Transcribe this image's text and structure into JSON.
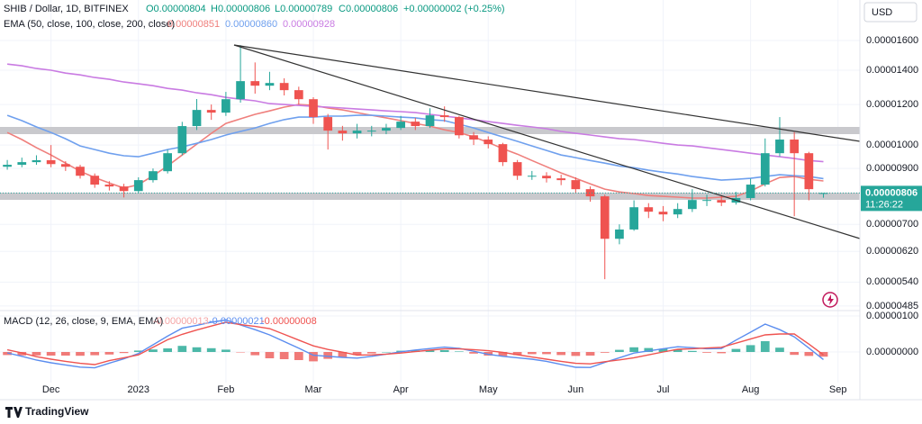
{
  "chart_data": {
    "type": "candlestick",
    "title": "SHIB / Dollar, 1D, BITFINEX",
    "header": [
      "O0.00000804",
      "H0.00000806",
      "L0.00000789",
      "C0.00000806",
      "+0.00000002 (+0.25%)"
    ],
    "currency": "USD",
    "price_label": "0.00000806",
    "countdown": "11:26:22",
    "log_scale": true,
    "grid": true,
    "up_color": "#26a69a",
    "down_color": "#ef5350",
    "ylim": [
      4.75e-06,
      1.92e-05
    ],
    "yticks": [
      {
        "value": 4.85e-06,
        "label": "0.00000485"
      },
      {
        "value": 5.4e-06,
        "label": "0.00000540"
      },
      {
        "value": 6.2e-06,
        "label": "0.00000620"
      },
      {
        "value": 7e-06,
        "label": "0.00000700"
      },
      {
        "value": 9e-06,
        "label": "0.00000900"
      },
      {
        "value": 1e-05,
        "label": "0.00001000"
      },
      {
        "value": 1.2e-05,
        "label": "0.00001200"
      },
      {
        "value": 1.4e-05,
        "label": "0.00001400"
      },
      {
        "value": 1.6e-05,
        "label": "0.00001600"
      }
    ],
    "categories": [
      null,
      null,
      null,
      "Dec",
      null,
      null,
      null,
      null,
      null,
      "2023",
      null,
      null,
      null,
      null,
      null,
      "Feb",
      null,
      null,
      null,
      null,
      null,
      "Mar",
      null,
      null,
      null,
      null,
      null,
      "Apr",
      null,
      null,
      null,
      null,
      null,
      "May",
      null,
      null,
      null,
      null,
      null,
      "Jun",
      null,
      null,
      null,
      null,
      null,
      "Jul",
      null,
      null,
      null,
      null,
      null,
      "Aug",
      null,
      null,
      null,
      null,
      null,
      "Sep",
      null
    ],
    "open": [
      9.07e-06,
      9.15e-06,
      9.26e-06,
      9.34e-06,
      9.18e-06,
      9.07e-06,
      8.71e-06,
      8.37e-06,
      8.3e-06,
      8.13e-06,
      8.54e-06,
      8.89e-06,
      9.64e-06,
      1.089e-05,
      1.171e-05,
      1.157e-05,
      1.229e-05,
      1.333e-05,
      1.306e-05,
      1.322e-05,
      1.28e-05,
      1.229e-05,
      1.134e-05,
      1.067e-05,
      1.054e-05,
      1.067e-05,
      1.067e-05,
      1.08e-05,
      1.111e-05,
      1.089e-05,
      1.143e-05,
      1.134e-05,
      1.045e-05,
      1.025e-05,
      1.004e-05,
      9.26e-06,
      8.71e-06,
      8.71e-06,
      8.61e-06,
      8.54e-06,
      8.2e-06,
      7.94e-06,
      6.56e-06,
      6.84e-06,
      7.56e-06,
      7.41e-06,
      7.32e-06,
      7.5e-06,
      7.81e-06,
      7.81e-06,
      7.72e-06,
      7.88e-06,
      8.37e-06,
      9.64e-06,
      1.025e-05,
      9.64e-06,
      8.04e-06,
      null,
      null
    ],
    "high": [
      9.35e-06,
      9.45e-06,
      9.55e-06,
      1e-05,
      9.3e-06,
      9.15e-06,
      8.8e-06,
      8.5e-06,
      8.4e-06,
      8.65e-06,
      9e-06,
      9.8e-06,
      1.11e-05,
      1.23e-05,
      1.2e-05,
      1.27e-05,
      1.567e-05,
      1.45e-05,
      1.39e-05,
      1.35e-05,
      1.3e-05,
      1.24e-05,
      1.15e-05,
      1.09e-05,
      1.1e-05,
      1.09e-05,
      1.1e-05,
      1.14e-05,
      1.13e-05,
      1.18e-05,
      1.19e-05,
      1.14e-05,
      1.06e-05,
      1.04e-05,
      1.01e-05,
      9.35e-06,
      8.9e-06,
      8.85e-06,
      8.75e-06,
      8.65e-06,
      8.3e-06,
      8e-06,
      7e-06,
      7.8e-06,
      7.7e-06,
      7.6e-06,
      7.7e-06,
      8.2e-06,
      8e-06,
      7.95e-06,
      8.1e-06,
      8.6e-06,
      1.03e-05,
      1.134e-05,
      1.06e-05,
      9.7e-06,
      8.06e-06,
      null,
      null
    ],
    "low": [
      8.95e-06,
      9.05e-06,
      9.15e-06,
      9.05e-06,
      8.9e-06,
      8.6e-06,
      8.25e-06,
      8.15e-06,
      7.9e-06,
      8.05e-06,
      8.45e-06,
      8.8e-06,
      9.55e-06,
      1.07e-05,
      1.12e-05,
      1.14e-05,
      1.21e-05,
      1.26e-05,
      1.28e-05,
      1.25e-05,
      1.2e-05,
      1.1e-05,
      9.8e-06,
      1.02e-05,
      1.03e-05,
      1.04e-05,
      1.05e-05,
      1.07e-05,
      1.07e-05,
      1.08e-05,
      1.11e-05,
      1.03e-05,
      1e-05,
      9.85e-06,
      9.1e-06,
      8.55e-06,
      8.55e-06,
      8.45e-06,
      8.35e-06,
      8.05e-06,
      7.75e-06,
      5.47e-06,
      6.4e-06,
      6.8e-06,
      7.2e-06,
      7.1e-06,
      7.2e-06,
      7.4e-06,
      7.6e-06,
      7.6e-06,
      7.65e-06,
      7.8e-06,
      8.3e-06,
      9.5e-06,
      7.26e-06,
      7.8e-06,
      7.89e-06,
      null,
      null
    ],
    "close": [
      9.15e-06,
      9.26e-06,
      9.34e-06,
      9.18e-06,
      9.07e-06,
      8.71e-06,
      8.37e-06,
      8.3e-06,
      8.13e-06,
      8.54e-06,
      8.89e-06,
      9.64e-06,
      1.089e-05,
      1.171e-05,
      1.157e-05,
      1.229e-05,
      1.333e-05,
      1.306e-05,
      1.322e-05,
      1.28e-05,
      1.229e-05,
      1.134e-05,
      1.067e-05,
      1.054e-05,
      1.067e-05,
      1.067e-05,
      1.08e-05,
      1.111e-05,
      1.089e-05,
      1.143e-05,
      1.134e-05,
      1.045e-05,
      1.025e-05,
      1.004e-05,
      9.26e-06,
      8.71e-06,
      8.71e-06,
      8.61e-06,
      8.54e-06,
      8.2e-06,
      7.94e-06,
      6.56e-06,
      6.84e-06,
      7.56e-06,
      7.41e-06,
      7.32e-06,
      7.5e-06,
      7.81e-06,
      7.81e-06,
      7.72e-06,
      7.88e-06,
      8.37e-06,
      9.64e-06,
      1.025e-05,
      9.64e-06,
      8.2e-06,
      8.06e-06,
      null,
      null
    ],
    "indicator_label": "EMA (50, close, 100, close, 200, close)",
    "series": [
      {
        "color": "#ef7f7c",
        "value_label": "0.00000851",
        "values": [
          1.058e-05,
          1.025e-05,
          9.88e-06,
          9.56e-06,
          9.22e-06,
          8.89e-06,
          8.64e-06,
          8.43e-06,
          8.24e-06,
          8.37e-06,
          8.71e-06,
          9.1e-06,
          9.56e-06,
          1.004e-05,
          1.054e-05,
          1.102e-05,
          1.125e-05,
          1.148e-05,
          1.166e-05,
          1.186e-05,
          1.2e-05,
          1.195e-05,
          1.181e-05,
          1.171e-05,
          1.157e-05,
          1.143e-05,
          1.13e-05,
          1.116e-05,
          1.102e-05,
          1.089e-05,
          1.071e-05,
          1.058e-05,
          1.037e-05,
          1.012e-05,
          9.84e-06,
          9.6e-06,
          9.33e-06,
          9.07e-06,
          8.82e-06,
          8.61e-06,
          8.4e-06,
          8.2e-06,
          8.1e-06,
          8.04e-06,
          7.97e-06,
          7.94e-06,
          7.91e-06,
          7.88e-06,
          7.88e-06,
          7.91e-06,
          7.94e-06,
          8.13e-06,
          8.4e-06,
          8.64e-06,
          8.68e-06,
          8.57e-06,
          8.51e-06,
          null,
          null
        ]
      },
      {
        "color": "#6fa0ee",
        "value_label": "0.00000860",
        "values": [
          1.143e-05,
          1.116e-05,
          1.085e-05,
          1.058e-05,
          1.029e-05,
          9.96e-06,
          9.8e-06,
          9.64e-06,
          9.53e-06,
          9.49e-06,
          9.64e-06,
          9.8e-06,
          9.92e-06,
          1.008e-05,
          1.025e-05,
          1.046e-05,
          1.063e-05,
          1.08e-05,
          1.102e-05,
          1.121e-05,
          1.134e-05,
          1.134e-05,
          1.139e-05,
          1.139e-05,
          1.143e-05,
          1.143e-05,
          1.139e-05,
          1.134e-05,
          1.13e-05,
          1.121e-05,
          1.116e-05,
          1.098e-05,
          1.08e-05,
          1.058e-05,
          1.037e-05,
          1.017e-05,
          9.96e-06,
          9.76e-06,
          9.56e-06,
          9.45e-06,
          9.33e-06,
          9.22e-06,
          9.1e-06,
          9.03e-06,
          8.93e-06,
          8.85e-06,
          8.78e-06,
          8.68e-06,
          8.61e-06,
          8.54e-06,
          8.57e-06,
          8.61e-06,
          8.68e-06,
          8.75e-06,
          8.71e-06,
          8.68e-06,
          8.6e-06,
          null,
          null
        ]
      },
      {
        "color": "#c97be2",
        "value_label": "0.00000928",
        "values": [
          1.439e-05,
          1.428e-05,
          1.411e-05,
          1.4e-05,
          1.382e-05,
          1.371e-05,
          1.355e-05,
          1.344e-05,
          1.328e-05,
          1.317e-05,
          1.306e-05,
          1.29e-05,
          1.28e-05,
          1.265e-05,
          1.254e-05,
          1.239e-05,
          1.229e-05,
          1.22e-05,
          1.205e-05,
          1.2e-05,
          1.195e-05,
          1.19e-05,
          1.186e-05,
          1.181e-05,
          1.176e-05,
          1.171e-05,
          1.166e-05,
          1.162e-05,
          1.157e-05,
          1.148e-05,
          1.139e-05,
          1.13e-05,
          1.121e-05,
          1.111e-05,
          1.102e-05,
          1.093e-05,
          1.085e-05,
          1.076e-05,
          1.063e-05,
          1.054e-05,
          1.046e-05,
          1.037e-05,
          1.029e-05,
          1.025e-05,
          1.017e-05,
          1.008e-05,
          1e-05,
          9.96e-06,
          9.88e-06,
          9.8e-06,
          9.72e-06,
          9.64e-06,
          9.56e-06,
          9.49e-06,
          9.41e-06,
          9.33e-06,
          9.28e-06,
          null,
          null
        ]
      }
    ],
    "macd": {
      "label": "MACD (12, 26, close, 9, EMA, EMA)",
      "ylim": [
        -8.5e-07,
        1.15e-06
      ],
      "yticks": [
        {
          "value": 1e-06,
          "label": "0.00000100"
        },
        {
          "value": 0,
          "label": "0.00000000"
        }
      ],
      "histogram": {
        "value_label": "-0.00000013",
        "up_color": "#4cb8a8",
        "down_color": "#f07a78",
        "values": [
          -8.5e-08,
          -9.5e-08,
          -9.5e-08,
          -1e-07,
          -1e-07,
          -1.05e-07,
          -9e-08,
          -7e-08,
          -3e-08,
          4e-08,
          7e-08,
          1e-07,
          1.7e-07,
          1.3e-07,
          1.05e-07,
          6.5e-08,
          -1e-08,
          -9e-08,
          -1.75e-07,
          -2e-07,
          -2.25e-07,
          -2.6e-07,
          -1.9e-07,
          -1.45e-07,
          -8.5e-08,
          -4e-08,
          0,
          3.5e-08,
          4.5e-08,
          4.5e-08,
          5e-08,
          1.5e-08,
          -4.5e-08,
          -1e-07,
          -1.1e-07,
          -8.5e-08,
          -6e-08,
          -6e-08,
          -8.5e-08,
          -1.1e-07,
          -1e-07,
          -2e-08,
          6e-08,
          1.3e-07,
          1.1e-07,
          9e-08,
          7e-08,
          3e-08,
          -2e-08,
          -3.5e-08,
          8.5e-08,
          1.9e-07,
          3e-07,
          1.2e-07,
          -8e-08,
          -1.1e-07,
          -1.3e-07,
          null,
          null
        ]
      },
      "series": [
        {
          "color": "#5b8def",
          "value_label": "-0.00000021",
          "values": [
            -2.5e-08,
            -1.2e-07,
            -2.25e-07,
            -3e-07,
            -3.6e-07,
            -4.2e-07,
            -4.4e-07,
            -3.1e-07,
            -1.9e-07,
            -4e-08,
            2e-07,
            4.4e-07,
            6.6e-07,
            7.4e-07,
            8.25e-07,
            8.9e-07,
            7.5e-07,
            6.2e-07,
            4.75e-07,
            2.9e-07,
            1.05e-07,
            -9e-08,
            -1.2e-07,
            -1.5e-07,
            -1.7e-07,
            -1.2e-07,
            -6e-08,
            5e-09,
            5.5e-08,
            9.5e-08,
            1.35e-07,
            1e-07,
            2e-08,
            -6.5e-08,
            -1.2e-07,
            -1.6e-07,
            -2e-07,
            -2.6e-07,
            -3.45e-07,
            -4.25e-07,
            -4.3e-07,
            -2.9e-07,
            -1.6e-07,
            -3e-08,
            3e-08,
            9e-08,
            1.45e-07,
            1.2e-07,
            9e-08,
            9.5e-08,
            3.3e-07,
            5.5e-07,
            7.75e-07,
            6.2e-07,
            4.2e-07,
            1.1e-07,
            -2.1e-07,
            null,
            null
          ]
        },
        {
          "color": "#ef5350",
          "value_label": "-0.00000008",
          "values": [
            6e-08,
            -2.5e-08,
            -1.3e-07,
            -2e-07,
            -2.6e-07,
            -3.15e-07,
            -3.5e-07,
            -2.4e-07,
            -1.6e-07,
            -8e-08,
            1.3e-07,
            3.4e-07,
            4.9e-07,
            6.1e-07,
            7.2e-07,
            8.25e-07,
            7.6e-07,
            7.1e-07,
            6.5e-07,
            4.9e-07,
            3.3e-07,
            1.7e-07,
            7e-08,
            -5e-09,
            -8.5e-08,
            -8e-08,
            -6e-08,
            -3e-08,
            1e-08,
            5e-08,
            8.5e-08,
            8.5e-08,
            6.5e-08,
            3.5e-08,
            -1e-08,
            -7.5e-08,
            -1.4e-07,
            -2e-07,
            -2.6e-07,
            -3.15e-07,
            -3.3e-07,
            -2.7e-07,
            -2.2e-07,
            -1.6e-07,
            -8e-08,
            0,
            7.5e-08,
            9e-08,
            1.1e-07,
            1.3e-07,
            2.45e-07,
            3.6e-07,
            4.75e-07,
            5e-07,
            5e-07,
            2.2e-07,
            -8e-08,
            null,
            null
          ]
        }
      ]
    }
  },
  "ui": {
    "brand": "TradingView"
  }
}
